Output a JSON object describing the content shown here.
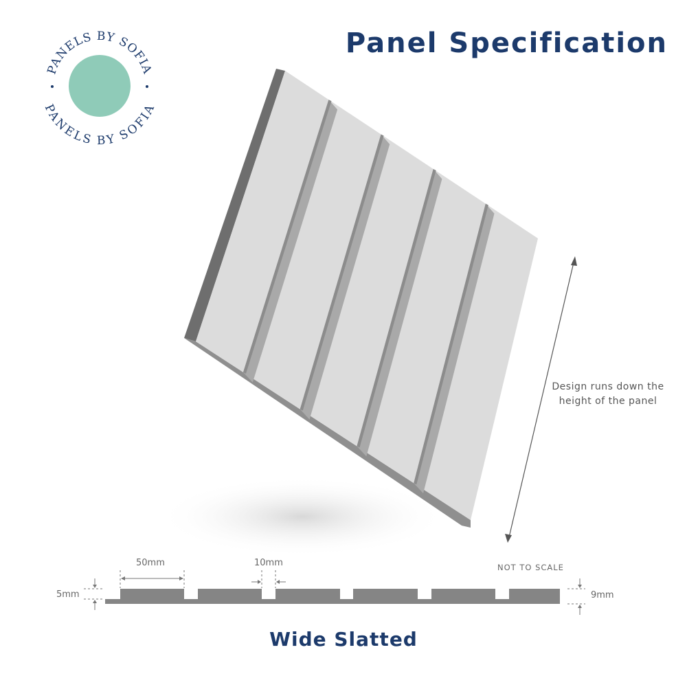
{
  "header": {
    "title": "Panel Specification"
  },
  "logo": {
    "text": "PANELS BY SOFIA",
    "circle_color": "#8fcbb8",
    "text_color": "#1c3a6b"
  },
  "annotation": {
    "design_note": "Design runs down the height of the panel"
  },
  "profile": {
    "slat_width": "50mm",
    "groove_width": "10mm",
    "groove_depth": "5mm",
    "thickness": "9mm",
    "scale_note": "NOT TO SCALE"
  },
  "footer": {
    "product_name": "Wide Slatted"
  },
  "colors": {
    "title": "#1c3a6b",
    "panel_face": "#dcdcdc",
    "panel_edge": "#8a8a8a",
    "profile": "#858585"
  }
}
